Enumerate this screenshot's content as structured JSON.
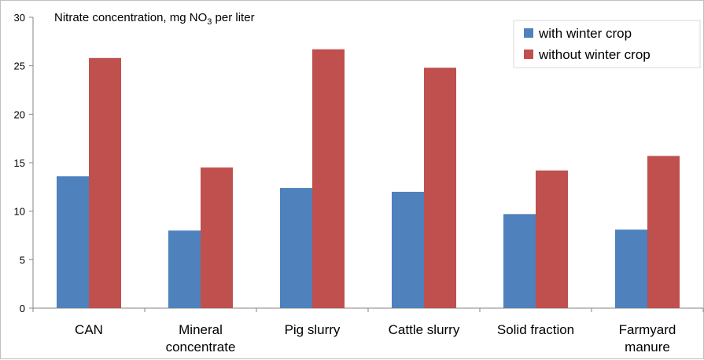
{
  "chart_data": {
    "type": "bar",
    "title_main": "Nitrate concentration, mg NO",
    "title_sub": "3",
    "title_tail": " per liter",
    "categories": [
      [
        "CAN"
      ],
      [
        "Mineral",
        "concentrate"
      ],
      [
        "Pig slurry"
      ],
      [
        "Cattle slurry"
      ],
      [
        "Solid fraction"
      ],
      [
        "Farmyard",
        "manure"
      ]
    ],
    "series": [
      {
        "name": "with winter crop",
        "color": "#4f81bd",
        "values": [
          13.6,
          8.0,
          12.4,
          12.0,
          9.7,
          8.1
        ]
      },
      {
        "name": "without winter crop",
        "color": "#c0504d",
        "values": [
          25.8,
          14.5,
          26.7,
          24.8,
          14.2,
          15.7
        ]
      }
    ],
    "yticks": [
      "0",
      "5",
      "10",
      "15",
      "20",
      "25",
      "30"
    ],
    "ylim": [
      0,
      30
    ],
    "grid": false,
    "legend_position": "top-right"
  }
}
